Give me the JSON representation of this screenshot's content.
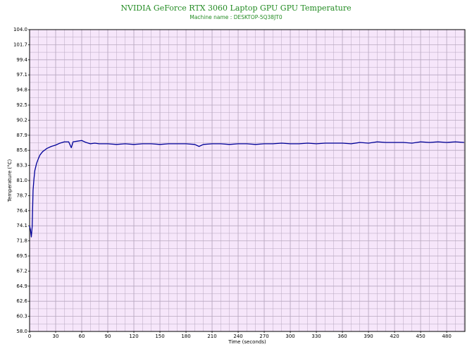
{
  "chart_data": {
    "type": "line",
    "title": "NVIDIA GeForce RTX 3060 Laptop GPU GPU Temperature",
    "subtitle": "Machine name : DESKTOP-5Q38JT0",
    "xlabel": "Time (seconds)",
    "ylabel": "Temperature (°C)",
    "color": "#000099",
    "grid": true,
    "xlim": [
      0,
      501
    ],
    "ylim": [
      58,
      104
    ],
    "xticks": [
      0,
      30,
      60,
      90,
      120,
      150,
      180,
      210,
      240,
      270,
      300,
      330,
      360,
      390,
      420,
      450,
      480
    ],
    "yticks": [
      {
        "value": 58,
        "label": "58.0"
      },
      60.3,
      62.6,
      64.9,
      67.2,
      69.5,
      71.8,
      74.1,
      76.4,
      78.7,
      {
        "value": 81,
        "label": "81.0"
      },
      83.3,
      85.6,
      87.9,
      90.2,
      92.5,
      94.8,
      97.1,
      99.4,
      101.7,
      {
        "value": 104,
        "label": "104.0"
      }
    ],
    "x": [
      0,
      1,
      2,
      3,
      4,
      5,
      6,
      8,
      10,
      12,
      15,
      18,
      20,
      25,
      30,
      35,
      40,
      45,
      48,
      50,
      55,
      60,
      65,
      70,
      75,
      80,
      90,
      100,
      110,
      120,
      130,
      140,
      150,
      160,
      170,
      180,
      190,
      195,
      200,
      210,
      220,
      230,
      240,
      250,
      260,
      270,
      280,
      290,
      300,
      310,
      320,
      330,
      340,
      350,
      360,
      370,
      380,
      390,
      400,
      410,
      420,
      430,
      440,
      450,
      460,
      470,
      480,
      490,
      500
    ],
    "values": [
      74.1,
      73.5,
      72.4,
      74.0,
      79.5,
      81.2,
      82.5,
      83.6,
      84.3,
      84.9,
      85.4,
      85.7,
      85.9,
      86.2,
      86.4,
      86.7,
      86.9,
      86.9,
      86.0,
      86.9,
      87.0,
      87.1,
      86.8,
      86.6,
      86.7,
      86.6,
      86.6,
      86.5,
      86.6,
      86.5,
      86.6,
      86.6,
      86.5,
      86.6,
      86.6,
      86.6,
      86.5,
      86.2,
      86.5,
      86.6,
      86.6,
      86.5,
      86.6,
      86.6,
      86.5,
      86.6,
      86.6,
      86.7,
      86.6,
      86.6,
      86.7,
      86.6,
      86.7,
      86.7,
      86.7,
      86.6,
      86.8,
      86.7,
      86.9,
      86.8,
      86.8,
      86.8,
      86.7,
      86.9,
      86.8,
      86.9,
      86.8,
      86.9,
      86.8
    ]
  }
}
